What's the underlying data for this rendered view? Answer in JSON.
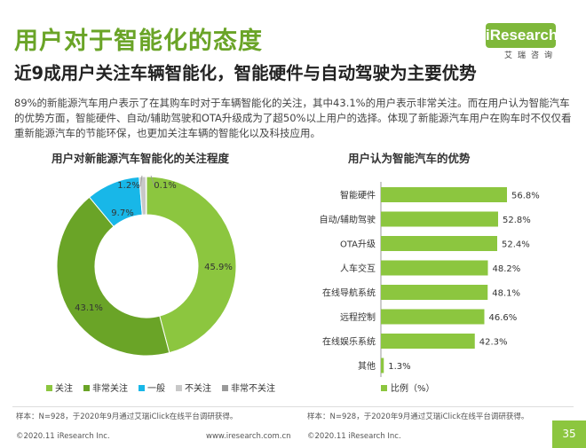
{
  "header": {
    "title": "用户对于智能化的态度",
    "subtitle": "近9成用户关注车辆智能化，智能硬件与自动驾驶为主要优势",
    "summary": "89%的新能源汽车用户表示了在其购车时对于车辆智能化的关注，其中43.1%的用户表示非常关注。而在用户认为智能汽车的优势方面，智能硬件、自动/辅助驾驶和OTA升级成为了超50%以上用户的选择。体现了新能源汽车用户在购车时不仅仅看重新能源汽车的节能环保，也更加关注车辆的智能化以及科技应用。"
  },
  "logo": {
    "brand": "iResearch",
    "cn": "艾瑞咨询"
  },
  "colors": {
    "green": "#8cc63f",
    "dark_green": "#6aa427",
    "cyan": "#18b7e8",
    "light_gray": "#c8c8c8",
    "gray": "#9a9a9a",
    "bar": "#8cc63f"
  },
  "chart_data": [
    {
      "type": "pie",
      "title": "用户对新能源汽车智能化的关注程度",
      "categories": [
        "关注",
        "非常关注",
        "一般",
        "不关注",
        "非常不关注"
      ],
      "values": [
        45.9,
        43.1,
        9.7,
        1.2,
        0.1
      ],
      "value_labels": [
        "45.9%",
        "43.1%",
        "9.7%",
        "1.2%",
        "0.1%"
      ],
      "legend_position": "bottom"
    },
    {
      "type": "bar",
      "orientation": "horizontal",
      "title": "用户认为智能汽车的优势",
      "categories": [
        "智能硬件",
        "自动/辅助驾驶",
        "OTA升级",
        "人车交互",
        "在线导航系统",
        "远程控制",
        "在线娱乐系统",
        "其他"
      ],
      "values": [
        56.8,
        52.8,
        52.4,
        48.2,
        48.1,
        46.6,
        42.3,
        1.3
      ],
      "value_labels": [
        "56.8%",
        "52.8%",
        "52.4%",
        "48.2%",
        "48.1%",
        "46.6%",
        "42.3%",
        "1.3%"
      ],
      "legend": "比例（%）",
      "xlim": [
        0,
        60
      ]
    }
  ],
  "footer": {
    "source_left": "样本：N=928，于2020年9月通过艾瑞iClick在线平台调研获得。",
    "source_right": "样本：N=928，于2020年9月通过艾瑞iClick在线平台调研获得。",
    "copyright_left": "©2020.11 iResearch Inc.",
    "url": "www.iresearch.com.cn",
    "copyright_right": "©2020.11 iResearch Inc.",
    "page_number": "35"
  }
}
